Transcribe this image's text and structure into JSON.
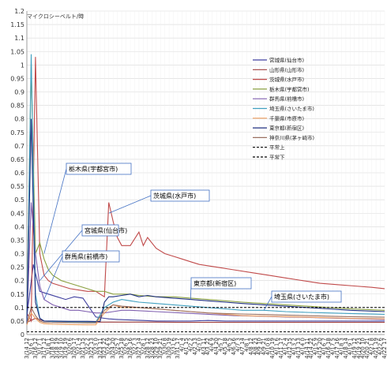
{
  "chart_data": {
    "type": "line",
    "title": "",
    "unit_label": "マイクロシーベルト/時",
    "xlabel": "",
    "ylabel": "",
    "ylim": [
      0,
      1.2
    ],
    "yticks": [
      "0",
      "0.05",
      "0.1",
      "0.15",
      "0.2",
      "0.25",
      "0.3",
      "0.35",
      "0.4",
      "0.45",
      "0.5",
      "0.55",
      "0.6",
      "0.65",
      "0.7",
      "0.75",
      "0.8",
      "0.85",
      "0.9",
      "0.95",
      "1",
      "1.05",
      "1.1",
      "1.15",
      "1.2"
    ],
    "xticks": [
      "3/14 12",
      "3/16 1",
      "3/16 12",
      "3/17 1",
      "3/17 12",
      "3/18 1",
      "3/18 10",
      "3/18 19",
      "3/19 10",
      "3/19 19",
      "3/20 6",
      "3/20 17",
      "3/21 4",
      "3/21 15",
      "3/22 2",
      "3/22 13",
      "3/23 0",
      "3/23 11",
      "3/23 22",
      "3/24 9",
      "3/24 20",
      "3/25 7",
      "3/25 18",
      "3/26 5",
      "3/26 16",
      "3/27 3",
      "3/27 14",
      "3/28 1",
      "3/28 12",
      "3/28 23",
      "3/29 10",
      "3/29 21",
      "3/30 8",
      "3/30 19",
      "3/31 6",
      "3/31 17",
      "4/1 4",
      "4/1 15",
      "4/2 2",
      "4/2 13",
      "4/3 0",
      "4/3 11",
      "4/3 22",
      "4/4 9",
      "4/4 20",
      "4/5 7",
      "4/5 18",
      "4/6 5",
      "4/6 16",
      "4/7 3",
      "4/7 14",
      "4/8 1",
      "4/8 12",
      "4/8 23",
      "4/9 10",
      "4/9 21",
      "4/10 8",
      "4/10 19",
      "4/11 6",
      "4/11 17",
      "4/12 4",
      "4/12 15",
      "4/13 2",
      "4/13 13",
      "4/14 0",
      "4/14 11",
      "4/14 22",
      "4/15 9",
      "4/15 20",
      "4/16 7",
      "4/16 18",
      "4/17 5",
      "4/17 16",
      "4/18 3",
      "4/18 14",
      "4/19 1",
      "4/19 12",
      "4/19 23",
      "4/20 10",
      "4/20 21",
      "4/21 8",
      "4/21 19",
      "4/22 6",
      "4/22 17"
    ],
    "legend_position": "right",
    "series": [
      {
        "name": "宮城県(仙台市)",
        "color": "#4040a0",
        "dash": "",
        "x": [
          0,
          1.5,
          3,
          5,
          7,
          9,
          11,
          13,
          16,
          18,
          19,
          21,
          24,
          27,
          30,
          34,
          38,
          42,
          46,
          50,
          54,
          58,
          62,
          66,
          70,
          74,
          78,
          83
        ],
        "y": [
          0.07,
          0.26,
          0.16,
          0.15,
          0.14,
          0.13,
          0.14,
          0.135,
          0.065,
          0.06,
          0.058,
          0.056,
          0.054,
          0.052,
          0.05,
          0.05,
          0.05,
          0.052,
          0.05,
          0.05,
          0.05,
          0.05,
          0.05,
          0.05,
          0.05,
          0.05,
          0.05,
          0.05
        ]
      },
      {
        "name": "山形県(山形市)",
        "color": "#a04040",
        "dash": "",
        "x": [
          0,
          2,
          4,
          6,
          10,
          15,
          20,
          25,
          30,
          35,
          40,
          45,
          50,
          55,
          60,
          65,
          70,
          75,
          83
        ],
        "y": [
          0.045,
          0.06,
          0.05,
          0.048,
          0.047,
          0.046,
          0.046,
          0.046,
          0.046,
          0.045,
          0.045,
          0.045,
          0.045,
          0.045,
          0.045,
          0.045,
          0.045,
          0.045,
          0.045
        ]
      },
      {
        "name": "茨城県(水戸市)",
        "color": "#c04a4a",
        "dash": "",
        "x": [
          0,
          1,
          2,
          3,
          4,
          5,
          6,
          8,
          10,
          12,
          14,
          16,
          17,
          18,
          19,
          20,
          21,
          22,
          24,
          26,
          27,
          28,
          30,
          32,
          34,
          36,
          38,
          40,
          44,
          48,
          52,
          56,
          60,
          64,
          68,
          72,
          76,
          80,
          83
        ],
        "y": [
          0.08,
          0.05,
          1.03,
          0.3,
          0.22,
          0.2,
          0.19,
          0.18,
          0.17,
          0.165,
          0.16,
          0.16,
          0.15,
          0.14,
          0.49,
          0.42,
          0.36,
          0.33,
          0.33,
          0.38,
          0.33,
          0.36,
          0.32,
          0.3,
          0.29,
          0.28,
          0.27,
          0.26,
          0.25,
          0.24,
          0.23,
          0.22,
          0.21,
          0.2,
          0.19,
          0.185,
          0.18,
          0.175,
          0.17
        ]
      },
      {
        "name": "栃木県(宇都宮市)",
        "color": "#8aa040",
        "dash": "",
        "x": [
          0,
          1,
          2,
          3,
          4,
          5,
          6,
          8,
          10,
          12,
          14,
          16,
          18,
          20,
          22,
          24,
          26,
          30,
          34,
          38,
          42,
          46,
          50,
          55,
          60,
          65,
          70,
          75,
          83
        ],
        "y": [
          0.06,
          1.0,
          0.3,
          0.34,
          0.28,
          0.24,
          0.22,
          0.2,
          0.19,
          0.18,
          0.17,
          0.16,
          0.16,
          0.15,
          0.15,
          0.15,
          0.145,
          0.14,
          0.14,
          0.135,
          0.13,
          0.125,
          0.12,
          0.115,
          0.11,
          0.105,
          0.1,
          0.095,
          0.09
        ]
      },
      {
        "name": "群馬県(前橋市)",
        "color": "#8060b0",
        "dash": "",
        "x": [
          0,
          1,
          2,
          3,
          4,
          5,
          6,
          8,
          10,
          12,
          14,
          16,
          18,
          20,
          22,
          24,
          30,
          36,
          42,
          48,
          54,
          60,
          66,
          72,
          78,
          83
        ],
        "y": [
          0.04,
          0.49,
          0.3,
          0.18,
          0.13,
          0.12,
          0.11,
          0.1,
          0.09,
          0.09,
          0.085,
          0.08,
          0.08,
          0.085,
          0.09,
          0.09,
          0.085,
          0.08,
          0.075,
          0.07,
          0.068,
          0.065,
          0.063,
          0.06,
          0.058,
          0.056
        ]
      },
      {
        "name": "埼玉県(さいたま市)",
        "color": "#40a0c0",
        "dash": "",
        "x": [
          0,
          1,
          2,
          3,
          4,
          6,
          8,
          10,
          12,
          14,
          16,
          18,
          20,
          22,
          24,
          26,
          30,
          34,
          38,
          42,
          46,
          50,
          55,
          60,
          65,
          70,
          75,
          83
        ],
        "y": [
          0.04,
          1.04,
          0.15,
          0.06,
          0.05,
          0.048,
          0.048,
          0.047,
          0.047,
          0.047,
          0.046,
          0.1,
          0.12,
          0.13,
          0.125,
          0.12,
          0.115,
          0.11,
          0.105,
          0.1,
          0.095,
          0.09,
          0.09,
          0.085,
          0.082,
          0.08,
          0.078,
          0.075
        ]
      },
      {
        "name": "千葉県(市原市)",
        "color": "#f0a060",
        "dash": "",
        "x": [
          0,
          1,
          2,
          3,
          4,
          6,
          10,
          14,
          16,
          18,
          20,
          22,
          26,
          30,
          34,
          38,
          42,
          46,
          50,
          55,
          60,
          65,
          70,
          75,
          83
        ],
        "y": [
          0.035,
          0.08,
          0.06,
          0.045,
          0.04,
          0.038,
          0.037,
          0.036,
          0.036,
          0.08,
          0.11,
          0.1,
          0.1,
          0.095,
          0.09,
          0.085,
          0.08,
          0.075,
          0.07,
          0.068,
          0.066,
          0.064,
          0.062,
          0.06,
          0.058
        ]
      },
      {
        "name": "東京都(新宿区)",
        "color": "#203080",
        "dash": "",
        "x": [
          0,
          1,
          2,
          3,
          4,
          6,
          10,
          14,
          16,
          17,
          18,
          19,
          20,
          22,
          24,
          26,
          28,
          30,
          34,
          38,
          42,
          46,
          50,
          55,
          60,
          65,
          70,
          75,
          83
        ],
        "y": [
          0.04,
          0.8,
          0.12,
          0.06,
          0.05,
          0.05,
          0.049,
          0.049,
          0.048,
          0.048,
          0.12,
          0.14,
          0.14,
          0.145,
          0.15,
          0.14,
          0.145,
          0.14,
          0.135,
          0.13,
          0.125,
          0.12,
          0.115,
          0.11,
          0.105,
          0.1,
          0.095,
          0.09,
          0.085
        ]
      },
      {
        "name": "神奈川県(茅ヶ崎市)",
        "color": "#9a7060",
        "dash": "",
        "x": [
          0,
          1,
          2,
          3,
          4,
          6,
          10,
          14,
          16,
          18,
          20,
          22,
          26,
          30,
          34,
          38,
          42,
          46,
          50,
          55,
          60,
          65,
          70,
          75,
          83
        ],
        "y": [
          0.04,
          0.1,
          0.07,
          0.05,
          0.045,
          0.044,
          0.044,
          0.043,
          0.043,
          0.09,
          0.11,
          0.105,
          0.1,
          0.095,
          0.09,
          0.085,
          0.08,
          0.078,
          0.076,
          0.074,
          0.072,
          0.07,
          0.068,
          0.066,
          0.064
        ]
      },
      {
        "name": "平常上",
        "color": "#000000",
        "dash": "3,2",
        "x": [
          0,
          83
        ],
        "y": [
          0.1,
          0.1
        ]
      },
      {
        "name": "平常下",
        "color": "#000000",
        "dash": "3,2",
        "x": [
          0,
          83
        ],
        "y": [
          0.01,
          0.01
        ]
      }
    ],
    "annotations": [
      {
        "label": "栃木県(宇都宮市)",
        "x": 4,
        "y": 0.3
      },
      {
        "label": "茨城県(水戸市)",
        "x": 19,
        "y": 0.45
      },
      {
        "label": "宮城県(仙台市)",
        "x": 3,
        "y": 0.2
      },
      {
        "label": "群馬県(前橋市)",
        "x": 4,
        "y": 0.13
      },
      {
        "label": "東京都(新宿区)",
        "x": 38,
        "y": 0.13
      },
      {
        "label": "埼玉県(さいたま市)",
        "x": 55,
        "y": 0.09
      }
    ]
  }
}
